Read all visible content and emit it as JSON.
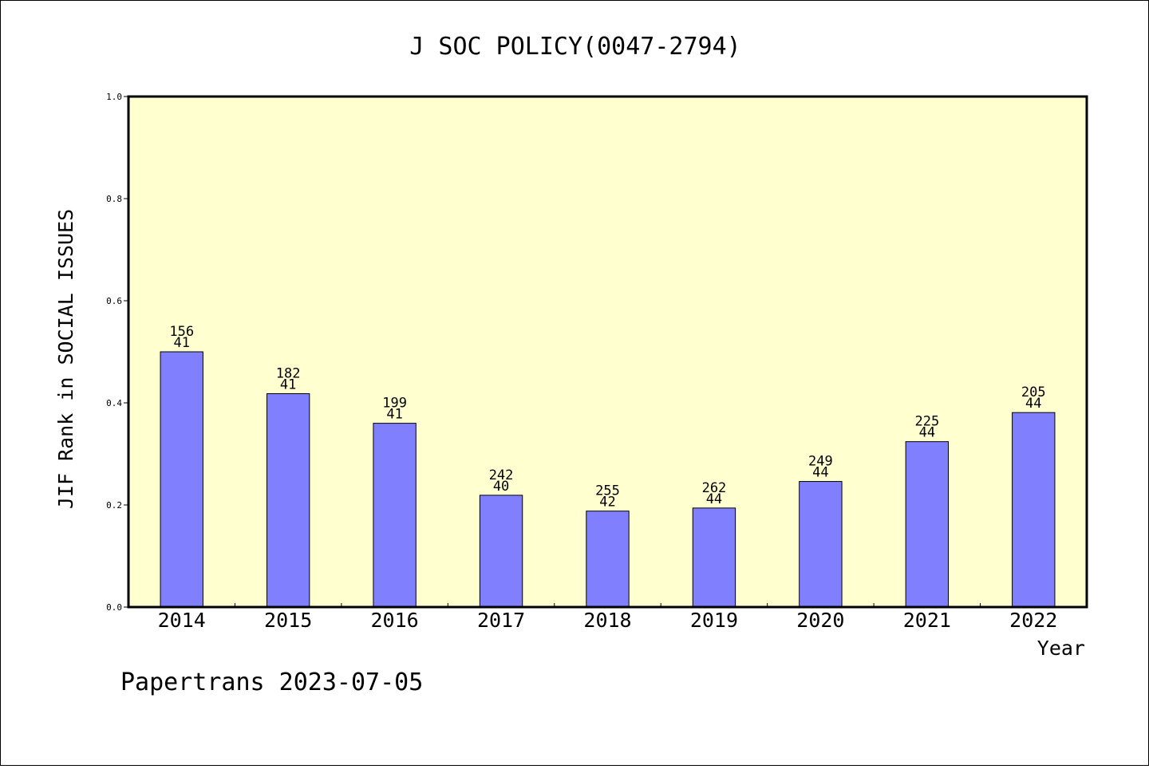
{
  "chart_data": {
    "type": "bar",
    "title": "J SOC POLICY(0047-2794)",
    "xlabel": "Year",
    "ylabel": "JIF Rank in SOCIAL ISSUES",
    "ylim": [
      0,
      1.0
    ],
    "yticks": [
      "0.0",
      "0.2",
      "0.4",
      "0.6",
      "0.8",
      "1.0"
    ],
    "grid": false,
    "categories": [
      "2014",
      "2015",
      "2016",
      "2017",
      "2018",
      "2019",
      "2020",
      "2021",
      "2022"
    ],
    "values": [
      0.5,
      0.418,
      0.36,
      0.219,
      0.188,
      0.194,
      0.246,
      0.324,
      0.381
    ],
    "label_top": [
      "156",
      "182",
      "199",
      "242",
      "255",
      "262",
      "249",
      "225",
      "205"
    ],
    "label_bottom": [
      "41",
      "41",
      "41",
      "40",
      "42",
      "44",
      "44",
      "44",
      "44"
    ],
    "colors": {
      "bar": "#8080ff",
      "plot_background": "#ffffd0"
    }
  },
  "footer": "Papertrans 2023-07-05"
}
